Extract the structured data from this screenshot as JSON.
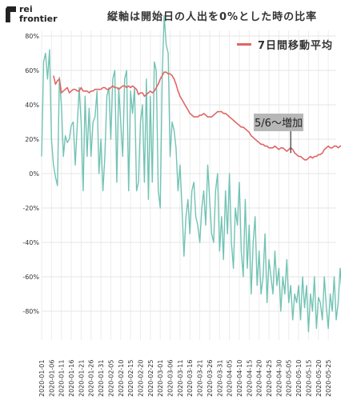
{
  "logo": {
    "line1": "rei",
    "line2": "frontier"
  },
  "chart_data": {
    "type": "line",
    "title": "縦軸は開始日の人出を0%とした時の比率",
    "ylim": [
      -95,
      90
    ],
    "yticks": [
      "80%",
      "60%",
      "40%",
      "20%",
      "0%",
      "-20%",
      "-40%",
      "-60%",
      "-80%"
    ],
    "ytick_values": [
      80,
      60,
      40,
      20,
      0,
      -20,
      -40,
      -60,
      -80
    ],
    "xlabels": [
      "2020-01-01",
      "2020-01-06",
      "2020-01-11",
      "2020-01-16",
      "2020-01-21",
      "2020-01-26",
      "2020-01-31",
      "2020-02-05",
      "2020-02-10",
      "2020-02-15",
      "2020-02-20",
      "2020-02-25",
      "2020-03-01",
      "2020-03-06",
      "2020-03-11",
      "2020-03-16",
      "2020-03-21",
      "2020-03-26",
      "2020-03-31",
      "2020-04-05",
      "2020-04-10",
      "2020-04-15",
      "2020-04-20",
      "2020-04-25",
      "2020-04-30",
      "2020-05-05",
      "2020-05-10",
      "2020-05-15",
      "2020-05-20",
      "2020-05-25"
    ],
    "grid": true,
    "series": [
      {
        "name": "",
        "color": "#72c3b4",
        "x_start": "2020-01-01",
        "values": [
          10,
          65,
          70,
          55,
          72,
          20,
          5,
          -2,
          -7,
          56,
          40,
          10,
          22,
          18,
          20,
          28,
          30,
          5,
          28,
          50,
          30,
          -10,
          45,
          10,
          38,
          10,
          30,
          33,
          48,
          0,
          20,
          -10,
          10,
          45,
          50,
          20,
          55,
          60,
          -5,
          50,
          30,
          10,
          55,
          60,
          -10,
          48,
          35,
          50,
          -10,
          -5,
          30,
          40,
          -5,
          55,
          -15,
          45,
          -5,
          65,
          60,
          -10,
          -20,
          58,
          92,
          75,
          70,
          10,
          30,
          25,
          15,
          -10,
          5,
          -20,
          -48,
          -25,
          -15,
          -35,
          -10,
          -5,
          -25,
          -30,
          -40,
          -20,
          -10,
          -30,
          5,
          -15,
          -35,
          -40,
          -10,
          0,
          -45,
          -25,
          -50,
          -10,
          -35,
          0,
          -40,
          -55,
          -20,
          -30,
          -5,
          -45,
          -60,
          -15,
          -55,
          -30,
          -70,
          -40,
          -25,
          -65,
          -45,
          -70,
          -60,
          -35,
          -75,
          -50,
          -60,
          -70,
          -45,
          -65,
          -55,
          -80,
          -60,
          -70,
          -50,
          -75,
          -65,
          -85,
          -70,
          -75,
          -65,
          -85,
          -60,
          -78,
          -65,
          -92,
          -70,
          -80,
          -60,
          -90,
          -72,
          -75,
          -85,
          -60,
          -78,
          -90,
          -70,
          -80,
          -60,
          -85,
          -75,
          -55,
          -70,
          -82,
          -60,
          -75,
          -50,
          -68,
          -45,
          -65,
          -75,
          -60,
          -48,
          -70,
          -80,
          -50,
          -65,
          -45,
          -82
        ]
      },
      {
        "name": "7日間移動平均",
        "color": "#e06666",
        "x_start": "2020-01-07",
        "values": [
          57,
          52,
          54,
          55,
          47,
          48,
          49,
          50,
          47,
          48,
          49,
          49,
          48,
          48,
          50,
          48,
          48,
          48,
          47,
          48,
          48,
          49,
          49,
          49,
          49,
          50,
          50,
          49,
          49,
          50,
          51,
          50,
          50,
          49,
          50,
          51,
          51,
          50,
          51,
          50,
          51,
          50,
          49,
          46,
          47,
          47,
          45,
          46,
          47,
          48,
          47,
          48,
          50,
          52,
          55,
          57,
          59,
          59,
          58,
          58,
          57,
          55,
          52,
          48,
          45,
          43,
          41,
          39,
          37,
          35,
          34,
          33,
          33,
          33,
          34,
          34,
          35,
          34,
          33,
          33,
          33,
          34,
          35,
          36,
          36,
          36,
          35,
          35,
          34,
          33,
          32,
          31,
          30,
          29,
          28,
          27,
          27,
          26,
          25,
          24,
          22,
          21,
          20,
          19,
          18,
          17,
          17,
          16,
          16,
          15,
          15,
          15,
          16,
          15,
          14,
          15,
          15,
          14,
          13,
          14,
          15,
          14,
          12,
          11,
          10,
          10,
          9,
          8,
          8,
          9,
          10,
          9,
          10,
          10,
          11,
          11,
          12,
          14,
          15,
          16,
          15,
          15,
          16,
          16,
          15,
          16,
          16,
          17,
          16,
          16,
          17,
          17,
          16,
          16,
          17,
          16,
          16,
          17,
          16,
          15
        ],
        "annotation": {
          "text": "5/6〜増加",
          "x": "2020-05-06",
          "y": 11
        }
      }
    ]
  }
}
